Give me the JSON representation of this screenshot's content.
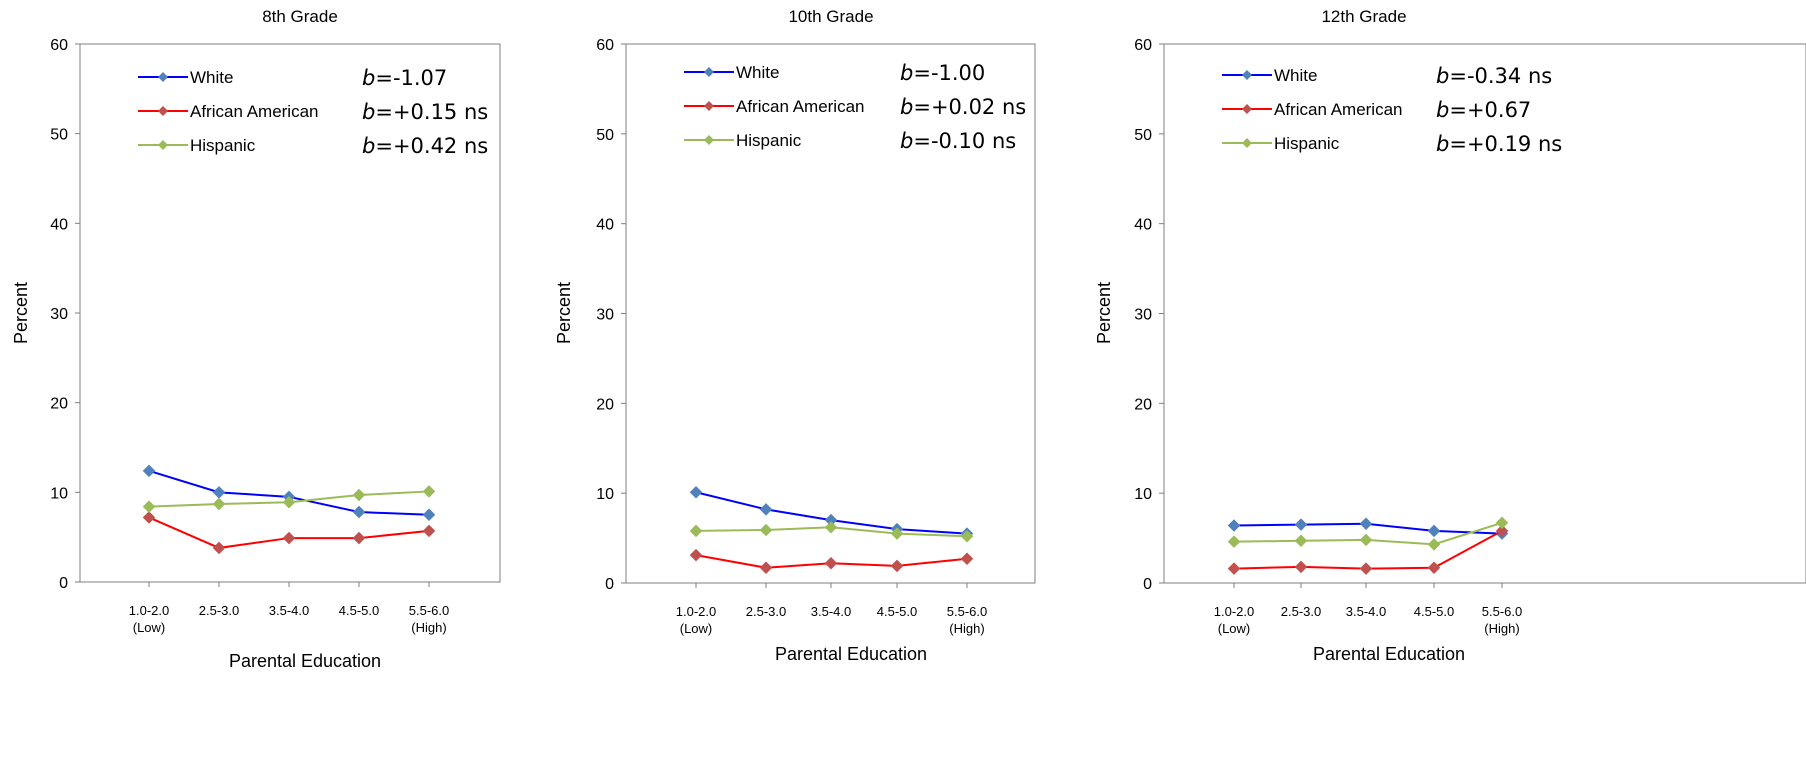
{
  "chart_data": [
    {
      "type": "line",
      "title": "8th Grade",
      "xlabel": "Parental Education",
      "ylabel": "Percent",
      "ylim": [
        0,
        60
      ],
      "yticks": [
        0,
        10,
        20,
        30,
        40,
        50,
        60
      ],
      "categories": [
        {
          "main": "1.0-2.0",
          "sub": "(Low)"
        },
        {
          "main": "2.5-3.0",
          "sub": ""
        },
        {
          "main": "3.5-4.0",
          "sub": ""
        },
        {
          "main": "4.5-5.0",
          "sub": ""
        },
        {
          "main": "5.5-6.0",
          "sub": "(High)"
        }
      ],
      "series": [
        {
          "name": "White",
          "color": "#0000ff",
          "marker_color": "#4f81bd",
          "values": [
            12.4,
            10.0,
            9.5,
            7.8,
            7.5
          ],
          "b_prefix": "b",
          "b_value": "=-1.07"
        },
        {
          "name": "African American",
          "color": "#ff0000",
          "marker_color": "#c0504d",
          "values": [
            7.2,
            3.8,
            4.9,
            4.9,
            5.7
          ],
          "b_prefix": "b",
          "b_value": "=+0.15 ns"
        },
        {
          "name": "Hispanic",
          "color": "#9bbb59",
          "marker_color": "#9bbb59",
          "values": [
            8.4,
            8.7,
            8.9,
            9.7,
            10.1
          ],
          "b_prefix": "b",
          "b_value": "=+0.42 ns"
        }
      ],
      "legend_position": "top-left",
      "grid": false
    },
    {
      "type": "line",
      "title": "10th Grade",
      "xlabel": "Parental Education",
      "ylabel": "Percent",
      "ylim": [
        0,
        60
      ],
      "yticks": [
        0,
        10,
        20,
        30,
        40,
        50,
        60
      ],
      "categories": [
        {
          "main": "1.0-2.0",
          "sub": "(Low)"
        },
        {
          "main": "2.5-3.0",
          "sub": ""
        },
        {
          "main": "3.5-4.0",
          "sub": ""
        },
        {
          "main": "4.5-5.0",
          "sub": ""
        },
        {
          "main": "5.5-6.0",
          "sub": "(High)"
        }
      ],
      "series": [
        {
          "name": "White",
          "color": "#0000ff",
          "marker_color": "#4f81bd",
          "values": [
            10.1,
            8.2,
            7.0,
            6.0,
            5.5
          ],
          "b_prefix": "b",
          "b_value": "=-1.00"
        },
        {
          "name": "African American",
          "color": "#ff0000",
          "marker_color": "#c0504d",
          "values": [
            3.1,
            1.7,
            2.2,
            1.9,
            2.7
          ],
          "b_prefix": "b",
          "b_value": "=+0.02 ns"
        },
        {
          "name": "Hispanic",
          "color": "#9bbb59",
          "marker_color": "#9bbb59",
          "values": [
            5.8,
            5.9,
            6.2,
            5.5,
            5.2
          ],
          "b_prefix": "b",
          "b_value": "=-0.10 ns"
        }
      ],
      "legend_position": "top-left",
      "grid": false
    },
    {
      "type": "line",
      "title": "12th Grade",
      "xlabel": "Parental Education",
      "ylabel": "Percent",
      "ylim": [
        0,
        60
      ],
      "yticks": [
        0,
        10,
        20,
        30,
        40,
        50,
        60
      ],
      "categories": [
        {
          "main": "1.0-2.0",
          "sub": "(Low)"
        },
        {
          "main": "2.5-3.0",
          "sub": ""
        },
        {
          "main": "3.5-4.0",
          "sub": ""
        },
        {
          "main": "4.5-5.0",
          "sub": ""
        },
        {
          "main": "5.5-6.0",
          "sub": "(High)"
        }
      ],
      "series": [
        {
          "name": "White",
          "color": "#0000ff",
          "marker_color": "#4f81bd",
          "values": [
            6.4,
            6.5,
            6.6,
            5.8,
            5.5
          ],
          "b_prefix": "b",
          "b_value": "=-0.34 ns"
        },
        {
          "name": "African American",
          "color": "#ff0000",
          "marker_color": "#c0504d",
          "values": [
            1.6,
            1.8,
            1.6,
            1.7,
            5.8
          ],
          "b_prefix": "b",
          "b_value": "=+0.67"
        },
        {
          "name": "Hispanic",
          "color": "#9bbb59",
          "marker_color": "#9bbb59",
          "values": [
            4.6,
            4.7,
            4.8,
            4.3,
            6.7
          ],
          "b_prefix": "b",
          "b_value": "=+0.19 ns"
        }
      ],
      "legend_position": "top-left",
      "grid": false
    }
  ]
}
